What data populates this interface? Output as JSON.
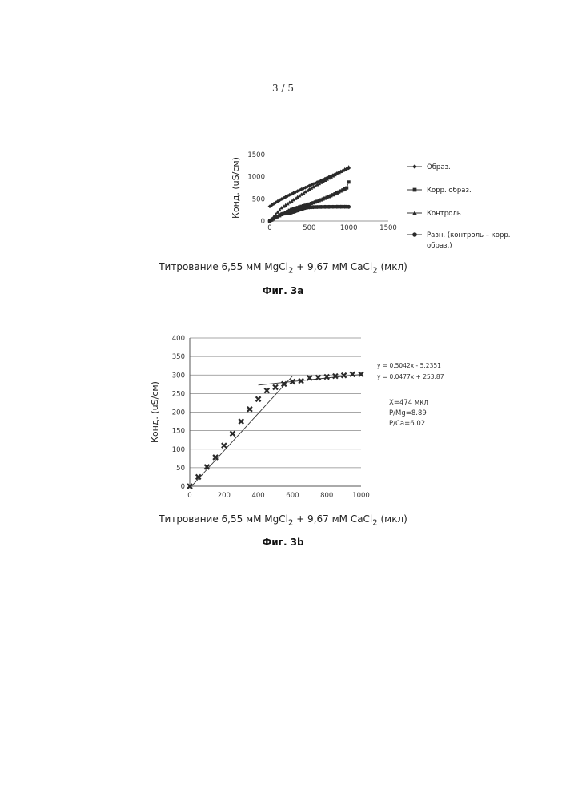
{
  "page": {
    "number": "3 / 5"
  },
  "chart_data": [
    {
      "type": "scatter",
      "figure_label": "Фиг. 3а",
      "xlabel": {
        "pre": "Титрование 6,55 мМ MgCl",
        "sub1": "2",
        "mid": " + 9,67 мМ CaCl",
        "sub2": "2",
        "post": " (мкл)"
      },
      "ylabel": "Конд. (uS/см)",
      "xlim": [
        0,
        1500
      ],
      "ylim": [
        0,
        1500
      ],
      "x_ticks": [
        "0",
        "500",
        "1000",
        "1500"
      ],
      "y_ticks": [
        "0",
        "500",
        "1000",
        "1500"
      ],
      "grid": false,
      "legend_position": "right",
      "x": [
        0,
        25,
        50,
        75,
        100,
        125,
        150,
        175,
        200,
        225,
        250,
        275,
        300,
        325,
        350,
        375,
        400,
        425,
        450,
        475,
        500,
        525,
        550,
        575,
        600,
        625,
        650,
        675,
        700,
        725,
        750,
        775,
        800,
        825,
        850,
        875,
        900,
        925,
        950,
        975,
        1000
      ],
      "series": [
        {
          "name": "Образ.",
          "marker": "diamond",
          "values": [
            330,
            360,
            390,
            418,
            445,
            471,
            496,
            520,
            543,
            566,
            589,
            611,
            632,
            653,
            674,
            695,
            715,
            735,
            755,
            775,
            795,
            815,
            835,
            855,
            875,
            895,
            915,
            935,
            955,
            975,
            995,
            1015,
            1035,
            1055,
            1075,
            1095,
            1115,
            1135,
            1155,
            1175,
            1195
          ]
        },
        {
          "name": "Корр. образ.",
          "marker": "square",
          "values": [
            0,
            24,
            48,
            72,
            96,
            120,
            144,
            168,
            192,
            216,
            240,
            259,
            275,
            290,
            304,
            317,
            330,
            343,
            356,
            369,
            382,
            397,
            412,
            428,
            444,
            461,
            478,
            496,
            514,
            533,
            552,
            572,
            592,
            613,
            634,
            656,
            678,
            701,
            724,
            748,
            880
          ]
        },
        {
          "name": "Контроль",
          "marker": "triangle",
          "values": [
            0,
            50,
            100,
            150,
            200,
            250,
            300,
            330,
            360,
            390,
            420,
            450,
            480,
            510,
            540,
            570,
            600,
            630,
            660,
            690,
            720,
            745,
            770,
            795,
            820,
            845,
            870,
            895,
            920,
            945,
            970,
            995,
            1020,
            1045,
            1070,
            1095,
            1120,
            1145,
            1170,
            1195,
            1220
          ]
        },
        {
          "name": "Разн. (контроль – корр. образ.)",
          "marker": "circle",
          "values": [
            0,
            26,
            52,
            78,
            104,
            130,
            156,
            162,
            168,
            174,
            180,
            191,
            205,
            220,
            236,
            253,
            270,
            282,
            294,
            303,
            308,
            311,
            313,
            315,
            316,
            317,
            318,
            319,
            320,
            320,
            320,
            321,
            321,
            321,
            322,
            322,
            322,
            322,
            322,
            322,
            320
          ]
        }
      ]
    },
    {
      "type": "scatter",
      "figure_label": "Фиг. 3b",
      "xlabel": {
        "pre": "Титрование 6,55 мМ MgCl",
        "sub1": "2",
        "mid": " + 9,67 мМ CaCl",
        "sub2": "2",
        "post": " (мкл)"
      },
      "ylabel": "Конд. (uS/см)",
      "xlim": [
        0,
        1000
      ],
      "ylim": [
        0,
        400
      ],
      "x_ticks": [
        "0",
        "200",
        "400",
        "600",
        "800",
        "1000"
      ],
      "y_ticks": [
        "0",
        "50",
        "100",
        "150",
        "200",
        "250",
        "300",
        "350",
        "400"
      ],
      "grid": true,
      "marker": "x",
      "x": [
        0,
        50,
        100,
        150,
        200,
        250,
        300,
        350,
        400,
        450,
        500,
        550,
        600,
        650,
        700,
        750,
        800,
        850,
        900,
        950,
        1000
      ],
      "values": [
        0,
        25,
        52,
        78,
        110,
        142,
        175,
        208,
        235,
        258,
        267,
        276,
        282,
        284,
        292,
        293,
        295,
        297,
        299,
        302,
        302
      ],
      "trendlines": [
        {
          "equation": "y = 0.5042x - 5.2351",
          "slope": 0.5042,
          "intercept": -5.2351,
          "x_range": [
            0,
            600
          ]
        },
        {
          "equation": "y = 0.0477x + 253.87",
          "slope": 0.0477,
          "intercept": 253.87,
          "x_range": [
            400,
            1000
          ]
        }
      ],
      "annotations": [
        "X=474   мкл",
        "P/Mg=8.89",
        "P/Ca=6.02"
      ]
    }
  ]
}
